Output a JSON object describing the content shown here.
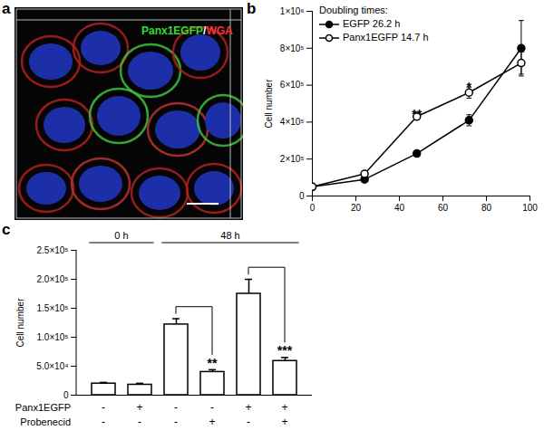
{
  "chart_data": [
    {
      "type": "image",
      "panel": "a",
      "labels": [
        {
          "text": "Panx1EGFP",
          "color": "#33dd33"
        },
        {
          "text": "/",
          "color": "#ffffff"
        },
        {
          "text": "WGA",
          "color": "#ff3333"
        }
      ]
    },
    {
      "type": "line",
      "panel": "b",
      "legend_title": "Doubling times:",
      "y_label": "Cell number",
      "legend": "upper left",
      "x": [
        0,
        24,
        48,
        72,
        96
      ],
      "xlim": [
        0,
        100
      ],
      "xticks": [
        0,
        20,
        40,
        60,
        80,
        100
      ],
      "ylim": [
        0,
        1000000
      ],
      "yticks": [
        0,
        {
          "value": 200000,
          "label": "2×10⁵"
        },
        {
          "value": 400000,
          "label": "4×10⁵"
        },
        {
          "value": 600000,
          "label": "6×10⁵"
        },
        {
          "value": 800000,
          "label": "8×10⁵"
        },
        {
          "value": 1000000,
          "label": "1×10⁶"
        }
      ],
      "series": [
        {
          "name": "EGFP 26.2 h",
          "color": "#000000",
          "marker": "filled circle",
          "values": [
            50000,
            90000,
            230000,
            410000,
            800000
          ],
          "errors": [
            5000,
            8000,
            10000,
            30000,
            150000
          ]
        },
        {
          "name": "Panx1EGFP 14.7 h",
          "color": "#000000",
          "marker": "open circle",
          "values": [
            50000,
            120000,
            430000,
            560000,
            720000
          ],
          "errors": [
            5000,
            10000,
            10000,
            30000,
            60000
          ]
        }
      ],
      "annotations": [
        {
          "x": 48,
          "y": 450000,
          "text": "**"
        },
        {
          "x": 72,
          "y": 600000,
          "text": "*"
        }
      ]
    },
    {
      "type": "bar",
      "panel": "c",
      "y_label": "Cell number",
      "categories": [
        null,
        null,
        null,
        null,
        null,
        null
      ],
      "values": [
        20000,
        18000,
        122000,
        40000,
        175000,
        59000
      ],
      "errors": [
        2000,
        2500,
        10000,
        4000,
        25000,
        6000
      ],
      "color": "#000000",
      "ylim": [
        0,
        250000
      ],
      "yticks": [
        0,
        {
          "value": 50000,
          "label": "5.0×10⁴"
        },
        {
          "value": 100000,
          "label": "1.0×10⁵"
        },
        {
          "value": 150000,
          "label": "1.5×10⁵"
        },
        {
          "value": 200000,
          "label": "2.0×10⁵"
        },
        {
          "value": 250000,
          "label": "2.5×10⁵"
        }
      ],
      "groups": [
        {
          "label": "0 h",
          "from": 0,
          "to": 1
        },
        {
          "label": "48 h",
          "from": 2,
          "to": 5
        }
      ],
      "comparisons": [
        {
          "from": 2,
          "to": 3,
          "label": "**"
        },
        {
          "from": 4,
          "to": 5,
          "label": "***"
        }
      ],
      "conditions": [
        {
          "name": "Panx1EGFP",
          "values": [
            "-",
            "+",
            "-",
            "-",
            "+",
            "+"
          ]
        },
        {
          "name": "Probenecid",
          "values": [
            "-",
            "-",
            "-",
            "+",
            "-",
            "+"
          ]
        }
      ]
    }
  ]
}
